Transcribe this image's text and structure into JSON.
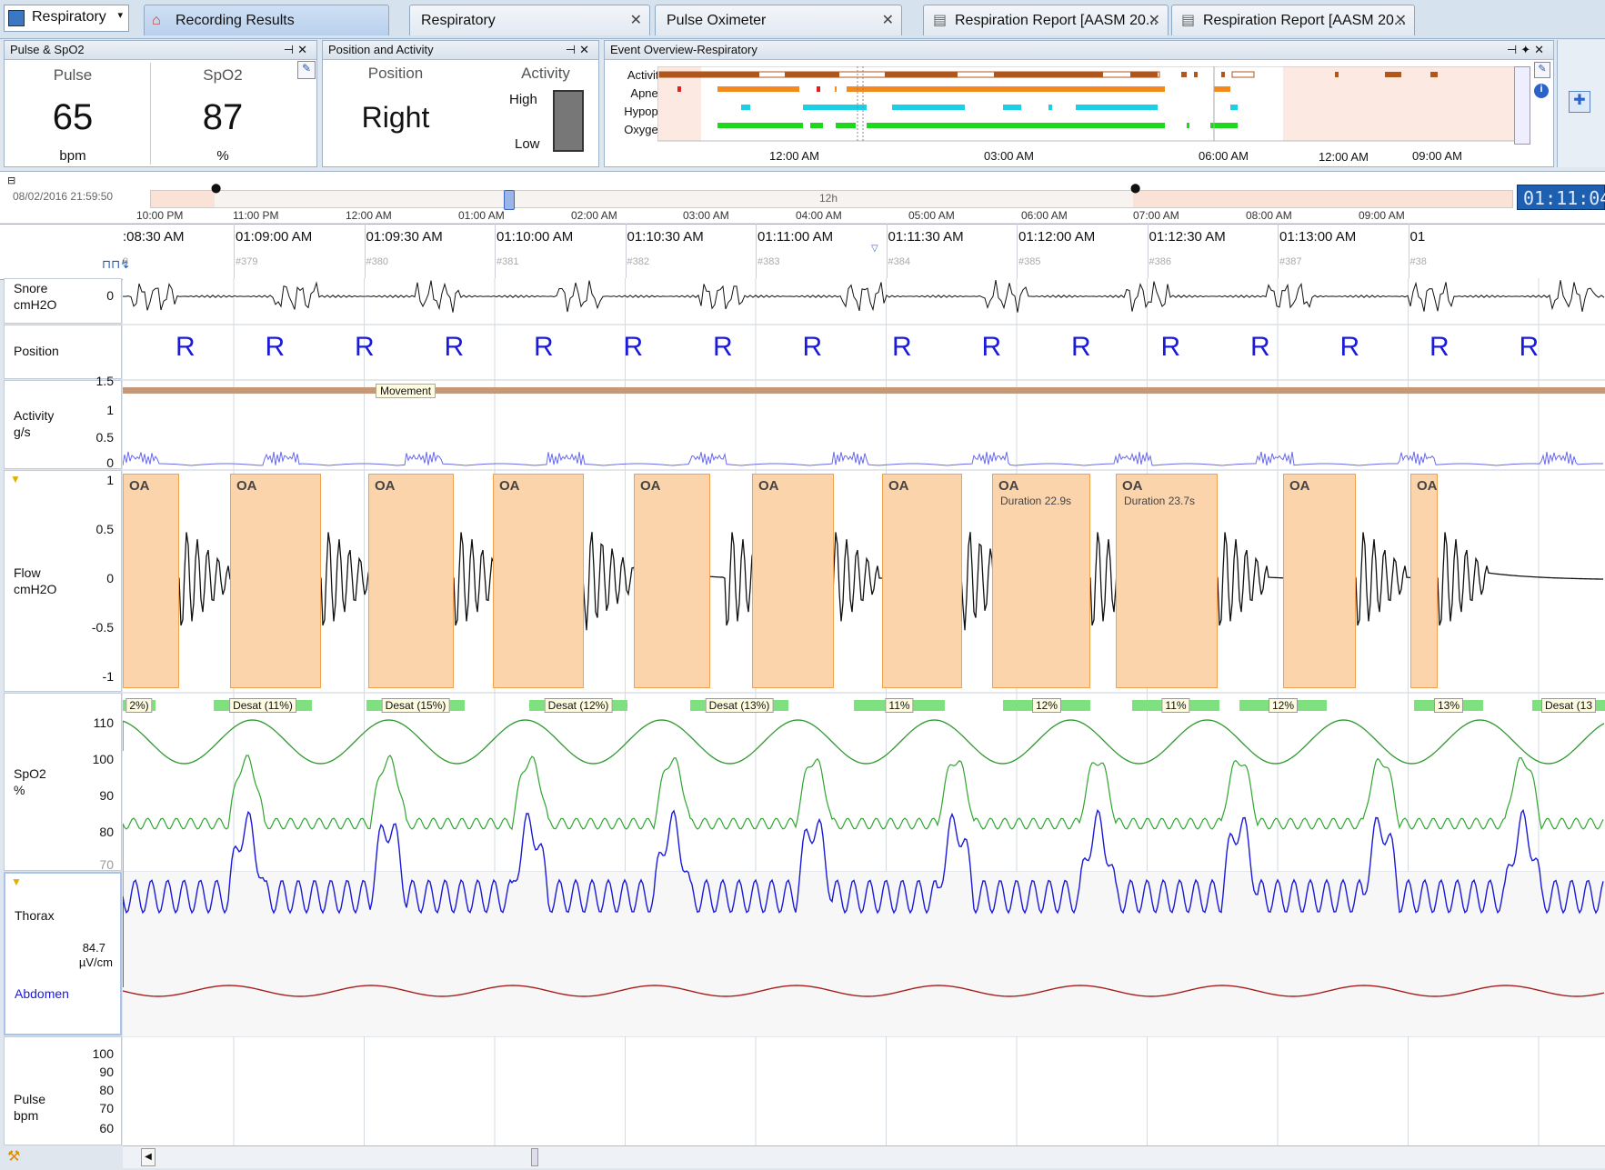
{
  "tabs": {
    "dropdown": "Respiratory",
    "items": [
      {
        "label": "Recording Results"
      },
      {
        "label": "Respiratory"
      },
      {
        "label": "Pulse Oximeter"
      },
      {
        "label": "Respiration Report [AASM 20..."
      },
      {
        "label": "Respiration Report [AASM 20..."
      }
    ]
  },
  "pulse_spo2": {
    "title": "Pulse & SpO2",
    "pulse_label": "Pulse",
    "pulse_value": "65",
    "pulse_unit": "bpm",
    "spo2_label": "SpO2",
    "spo2_value": "87",
    "spo2_unit": "%"
  },
  "position_activity": {
    "title": "Position and Activity",
    "position_label": "Position",
    "position_value": "Right",
    "activity_label": "Activity",
    "high": "High",
    "low": "Low"
  },
  "overview": {
    "title": "Event Overview-Respiratory",
    "rows": [
      "Activity",
      "Apnea",
      "Hypopn",
      "Oxygen"
    ],
    "times": [
      "12:00 AM",
      "03:00 AM",
      "06:00 AM",
      "09:00 AM"
    ]
  },
  "timeline": {
    "start": "08/02/2016 21:59:50",
    "center": "12h",
    "clock": "01:11:04",
    "hours": [
      "10:00 PM",
      "11:00 PM",
      "12:00 AM",
      "01:00 AM",
      "02:00 AM",
      "03:00 AM",
      "04:00 AM",
      "05:00 AM",
      "06:00 AM",
      "07:00 AM",
      "08:00 AM",
      "09:00 AM"
    ]
  },
  "time_axis": {
    "labels": [
      ":08:30 AM",
      "01:09:00 AM",
      "01:09:30 AM",
      "01:10:00 AM",
      "01:10:30 AM",
      "01:11:00 AM",
      "01:11:30 AM",
      "01:12:00 AM",
      "01:12:30 AM",
      "01:13:00 AM",
      "01"
    ],
    "epochs": [
      "8",
      "#379",
      "#380",
      "#381",
      "#382",
      "#383",
      "#384",
      "#385",
      "#386",
      "#387",
      "#38"
    ]
  },
  "channels": {
    "snore": {
      "name": "Snore",
      "unit": "cmH2O",
      "ticks": [
        "0"
      ]
    },
    "position": {
      "name": "Position",
      "marks": [
        "R",
        "R",
        "R",
        "R",
        "R",
        "R",
        "R",
        "R",
        "R",
        "R",
        "R",
        "R",
        "R",
        "R",
        "R",
        "R"
      ]
    },
    "activity": {
      "name": "Activity",
      "unit": "g/s",
      "ticks": [
        "1.5",
        "1",
        "0.5",
        "0"
      ],
      "movement": "Movement"
    },
    "flow": {
      "name": "Flow",
      "unit": "cmH2O",
      "ticks": [
        "1",
        "0.5",
        "0",
        "-0.5",
        "-1"
      ],
      "event": "OA",
      "durations": [
        "Duration 22.9s",
        "Duration 23.7s"
      ]
    },
    "desat": [
      "2%)",
      "Desat (11%)",
      "Desat (15%)",
      "Desat (12%)",
      "Desat (13%)",
      "11%",
      "12%",
      "11%",
      "12%",
      "13%",
      "Desat (13"
    ],
    "spo2": {
      "name": "SpO2",
      "unit": "%",
      "ticks": [
        "110",
        "100",
        "90",
        "80",
        "70"
      ]
    },
    "thorax": {
      "name": "Thorax",
      "scale": "84.7",
      "scale_unit": "µV/cm",
      "abdomen": "Abdomen"
    },
    "pulse": {
      "name": "Pulse",
      "unit": "bpm",
      "ticks": [
        "100",
        "90",
        "80",
        "70",
        "60"
      ]
    }
  },
  "colors": {
    "oa": "#fcd4ab",
    "oa_border": "#f2a04e",
    "apnea": "#f28a1e",
    "hypopnea": "#1ad0e4",
    "oxygen": "#1ed81e",
    "activity": "#b0561a",
    "spo2": "#2e9a2e",
    "abdomen": "#1a1ad8",
    "pulse": "#a81c1c",
    "position": "#1a1ad8"
  }
}
